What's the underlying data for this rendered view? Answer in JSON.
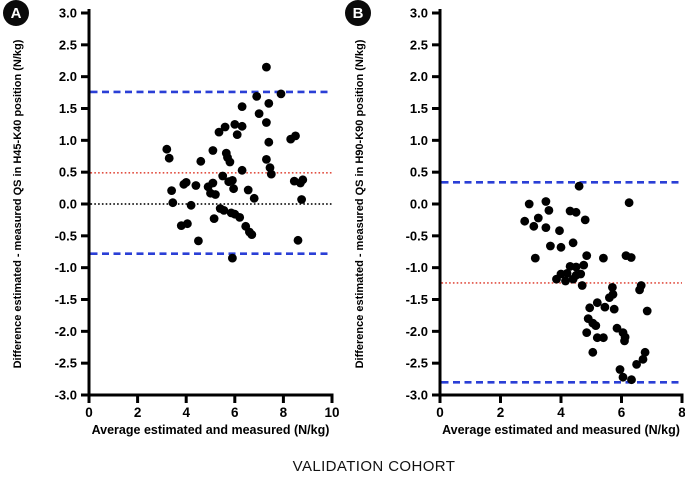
{
  "figure": {
    "caption": "VALIDATION COHORT"
  },
  "colors": {
    "loa_line": "#2a3fd6",
    "bias_line": "#e14f42",
    "zero_line": "#1a1a1a",
    "points": "#000000",
    "axis": "#000000"
  },
  "chart_data": [
    {
      "type": "scatter",
      "panel_label": "A",
      "xlabel": "Average estimated and measured (N/kg)",
      "ylabel": "Difference estimated - measured QS in H45-K40 position (N/kg)",
      "xlim": [
        0,
        10
      ],
      "ylim": [
        -3,
        3
      ],
      "grid": false,
      "xticks": [
        0,
        2,
        4,
        6,
        8,
        10
      ],
      "xtick_labels": [
        "0",
        "2",
        "4",
        "6",
        "8",
        "10"
      ],
      "yticks": [
        3,
        2.5,
        2,
        1.5,
        1,
        0.5,
        0,
        -0.5,
        -1,
        -1.5,
        -2,
        -2.5,
        -3
      ],
      "ytick_labels": [
        "3.0",
        "2.5",
        "2.0",
        "1.5",
        "1.0",
        "0.5",
        "0.0",
        "-0.5",
        "-1.0",
        "-1.5",
        "-2.0",
        "-2.5",
        "-3.0"
      ],
      "hlines": [
        {
          "y": 1.76,
          "role": "upper-loa",
          "style": "dashed",
          "color": "#2a3fd6"
        },
        {
          "y": 0.49,
          "role": "mean-bias",
          "style": "dotted",
          "color": "#e14f42"
        },
        {
          "y": 0.0,
          "role": "zero",
          "style": "dotted",
          "color": "#1a1a1a"
        },
        {
          "y": -0.78,
          "role": "lower-loa",
          "style": "dashed",
          "color": "#2a3fd6"
        }
      ],
      "points": [
        [
          3.2,
          0.86
        ],
        [
          3.3,
          0.72
        ],
        [
          3.4,
          0.21
        ],
        [
          3.45,
          0.02
        ],
        [
          3.8,
          -0.34
        ],
        [
          3.9,
          0.31
        ],
        [
          4.0,
          0.34
        ],
        [
          4.05,
          -0.31
        ],
        [
          4.2,
          -0.02
        ],
        [
          4.4,
          0.29
        ],
        [
          4.5,
          -0.58
        ],
        [
          4.6,
          0.67
        ],
        [
          4.9,
          0.27
        ],
        [
          5.0,
          0.17
        ],
        [
          5.1,
          0.84
        ],
        [
          5.1,
          0.33
        ],
        [
          5.15,
          -0.23
        ],
        [
          5.2,
          0.15
        ],
        [
          5.35,
          1.13
        ],
        [
          5.4,
          -0.07
        ],
        [
          5.5,
          0.44
        ],
        [
          5.55,
          -0.1
        ],
        [
          5.6,
          1.21
        ],
        [
          5.65,
          0.8
        ],
        [
          5.7,
          0.73
        ],
        [
          5.75,
          0.35
        ],
        [
          5.8,
          0.66
        ],
        [
          5.85,
          -0.14
        ],
        [
          5.9,
          0.37
        ],
        [
          5.9,
          -0.85
        ],
        [
          5.95,
          0.24
        ],
        [
          6.0,
          1.25
        ],
        [
          6.0,
          -0.16
        ],
        [
          6.1,
          1.09
        ],
        [
          6.2,
          -0.21
        ],
        [
          6.3,
          1.53
        ],
        [
          6.3,
          1.22
        ],
        [
          6.3,
          0.53
        ],
        [
          6.45,
          -0.35
        ],
        [
          6.55,
          0.22
        ],
        [
          6.6,
          -0.44
        ],
        [
          6.7,
          -0.48
        ],
        [
          6.8,
          0.09
        ],
        [
          6.9,
          1.69
        ],
        [
          7.0,
          1.42
        ],
        [
          7.3,
          2.15
        ],
        [
          7.3,
          1.28
        ],
        [
          7.3,
          0.7
        ],
        [
          7.4,
          1.58
        ],
        [
          7.4,
          0.97
        ],
        [
          7.45,
          0.57
        ],
        [
          7.5,
          0.47
        ],
        [
          7.9,
          1.73
        ],
        [
          8.3,
          1.02
        ],
        [
          8.5,
          1.07
        ],
        [
          8.45,
          0.36
        ],
        [
          8.7,
          0.33
        ],
        [
          8.8,
          0.38
        ],
        [
          8.75,
          0.07
        ],
        [
          8.6,
          -0.57
        ]
      ]
    },
    {
      "type": "scatter",
      "panel_label": "B",
      "xlabel": "Average estimated and measured (N/kg)",
      "ylabel": "Difference estimated - measured QS in H90-K90 position (N/kg)",
      "xlim": [
        0,
        8
      ],
      "ylim": [
        -3,
        3
      ],
      "grid": false,
      "xticks": [
        0,
        2,
        4,
        6,
        8
      ],
      "xtick_labels": [
        "0",
        "2",
        "4",
        "6",
        "8"
      ],
      "yticks": [
        3,
        2.5,
        2,
        1.5,
        1,
        0.5,
        0,
        -0.5,
        -1,
        -1.5,
        -2,
        -2.5,
        -3
      ],
      "ytick_labels": [
        "3.0",
        "2.5",
        "2.0",
        "1.5",
        "1.0",
        "0.5",
        "0.0",
        "-0.5",
        "-1.0",
        "-1.5",
        "-2.0",
        "-2.5",
        "-3.0"
      ],
      "hlines": [
        {
          "y": 0.34,
          "role": "upper-loa",
          "style": "dashed",
          "color": "#2a3fd6"
        },
        {
          "y": -1.24,
          "role": "mean-bias",
          "style": "dotted",
          "color": "#e14f42"
        },
        {
          "y": -2.8,
          "role": "lower-loa",
          "style": "dashed",
          "color": "#2a3fd6"
        }
      ],
      "points": [
        [
          2.8,
          -0.27
        ],
        [
          2.95,
          0.0
        ],
        [
          3.1,
          -0.35
        ],
        [
          3.15,
          -0.85
        ],
        [
          3.25,
          -0.22
        ],
        [
          3.5,
          0.04
        ],
        [
          3.5,
          -0.37
        ],
        [
          3.6,
          -0.1
        ],
        [
          3.65,
          -0.66
        ],
        [
          3.85,
          -1.18
        ],
        [
          3.95,
          -0.42
        ],
        [
          4.0,
          -0.68
        ],
        [
          4.0,
          -1.1
        ],
        [
          4.15,
          -1.21
        ],
        [
          4.2,
          -1.09
        ],
        [
          4.3,
          -0.11
        ],
        [
          4.3,
          -0.98
        ],
        [
          4.4,
          -0.61
        ],
        [
          4.4,
          -1.18
        ],
        [
          4.5,
          -0.13
        ],
        [
          4.5,
          -0.99
        ],
        [
          4.5,
          -1.12
        ],
        [
          4.6,
          0.28
        ],
        [
          4.65,
          -1.1
        ],
        [
          4.7,
          -1.28
        ],
        [
          4.75,
          -0.96
        ],
        [
          4.8,
          -0.25
        ],
        [
          4.85,
          -0.81
        ],
        [
          4.85,
          -2.02
        ],
        [
          4.9,
          -1.8
        ],
        [
          4.95,
          -1.63
        ],
        [
          5.05,
          -1.87
        ],
        [
          5.05,
          -2.33
        ],
        [
          5.15,
          -1.91
        ],
        [
          5.2,
          -1.55
        ],
        [
          5.2,
          -2.1
        ],
        [
          5.4,
          -0.85
        ],
        [
          5.4,
          -2.1
        ],
        [
          5.45,
          -1.62
        ],
        [
          5.6,
          -1.47
        ],
        [
          5.7,
          -1.31
        ],
        [
          5.72,
          -1.42
        ],
        [
          5.76,
          -1.65
        ],
        [
          5.85,
          -1.95
        ],
        [
          5.95,
          -2.6
        ],
        [
          6.05,
          -2.02
        ],
        [
          6.05,
          -2.72
        ],
        [
          6.1,
          -2.15
        ],
        [
          6.12,
          -2.09
        ],
        [
          6.15,
          -0.81
        ],
        [
          6.25,
          0.02
        ],
        [
          6.32,
          -0.84
        ],
        [
          6.33,
          -2.76
        ],
        [
          6.5,
          -2.52
        ],
        [
          6.6,
          -1.35
        ],
        [
          6.65,
          -1.28
        ],
        [
          6.71,
          -2.44
        ],
        [
          6.78,
          -2.33
        ],
        [
          6.85,
          -1.68
        ]
      ]
    }
  ]
}
